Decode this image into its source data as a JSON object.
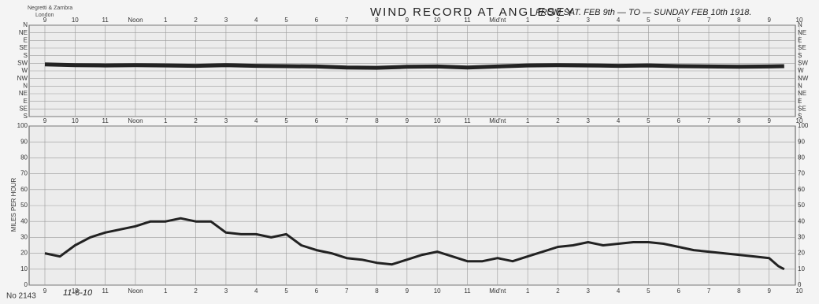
{
  "chart_data": {
    "type": "line",
    "maker": "Negretti & Zambra",
    "maker_city": "London",
    "title": "WIND RECORD AT ANGLESEY",
    "subtitle": "FROM SAT. FEB 9th — TO — SUNDAY FEB 10th 1918.",
    "y_label": "MILES PER HOUR",
    "record_number": "No 2143",
    "note": "11-6-10",
    "xlim": [
      0,
      25
    ],
    "xticks": [
      {
        "value": 0,
        "label": "9"
      },
      {
        "value": 1,
        "label": "10"
      },
      {
        "value": 2,
        "label": "11"
      },
      {
        "value": 3,
        "label": "Noon"
      },
      {
        "value": 4,
        "label": "1"
      },
      {
        "value": 5,
        "label": "2"
      },
      {
        "value": 6,
        "label": "3"
      },
      {
        "value": 7,
        "label": "4"
      },
      {
        "value": 8,
        "label": "5"
      },
      {
        "value": 9,
        "label": "6"
      },
      {
        "value": 10,
        "label": "7"
      },
      {
        "value": 11,
        "label": "8"
      },
      {
        "value": 12,
        "label": "9"
      },
      {
        "value": 13,
        "label": "10"
      },
      {
        "value": 14,
        "label": "11"
      },
      {
        "value": 15,
        "label": "Mid'nt"
      },
      {
        "value": 16,
        "label": "1"
      },
      {
        "value": 17,
        "label": "2"
      },
      {
        "value": 18,
        "label": "3"
      },
      {
        "value": 19,
        "label": "4"
      },
      {
        "value": 20,
        "label": "5"
      },
      {
        "value": 21,
        "label": "6"
      },
      {
        "value": 22,
        "label": "7"
      },
      {
        "value": 23,
        "label": "8"
      },
      {
        "value": 24,
        "label": "9"
      },
      {
        "value": 25,
        "label": "10"
      }
    ],
    "ylim": [
      0,
      100
    ],
    "yticks": [
      0,
      10,
      20,
      30,
      40,
      50,
      60,
      70,
      80,
      90,
      100
    ],
    "grid": true,
    "direction_lim": [
      0,
      540
    ],
    "direction_ticks": [
      {
        "value": 0,
        "label": "N"
      },
      {
        "value": 45,
        "label": "NE"
      },
      {
        "value": 90,
        "label": "E"
      },
      {
        "value": 135,
        "label": "SE"
      },
      {
        "value": 180,
        "label": "S"
      },
      {
        "value": 225,
        "label": "SW"
      },
      {
        "value": 270,
        "label": "W"
      },
      {
        "value": 315,
        "label": "NW"
      },
      {
        "value": 360,
        "label": "N"
      },
      {
        "value": 405,
        "label": "NE"
      },
      {
        "value": 450,
        "label": "E"
      },
      {
        "value": 495,
        "label": "SE"
      },
      {
        "value": 540,
        "label": "S"
      }
    ],
    "direction": {
      "color": "#222",
      "x": [
        0,
        1,
        2,
        3,
        4,
        5,
        6,
        7,
        8,
        9,
        10,
        11,
        12,
        13,
        14,
        15,
        16,
        17,
        18,
        19,
        20,
        21,
        22,
        23,
        24,
        24.5
      ],
      "values": [
        232,
        236,
        238,
        236,
        238,
        240,
        236,
        240,
        242,
        244,
        250,
        252,
        246,
        244,
        250,
        244,
        238,
        236,
        238,
        240,
        238,
        242,
        244,
        246,
        244,
        242
      ]
    },
    "series": [
      {
        "name": "MILES PER HOUR",
        "color": "#222",
        "x": [
          0,
          0.5,
          1,
          1.5,
          2,
          2.5,
          3,
          3.5,
          4,
          4.5,
          5,
          5.5,
          6,
          6.5,
          7,
          7.5,
          8,
          8.5,
          9,
          9.5,
          10,
          10.5,
          11,
          11.5,
          12,
          12.5,
          13,
          13.5,
          14,
          14.5,
          15,
          15.5,
          16,
          16.5,
          17,
          17.5,
          18,
          18.5,
          19,
          19.5,
          20,
          20.5,
          21,
          21.5,
          22,
          22.5,
          23,
          23.5,
          24,
          24.3,
          24.5
        ],
        "values": [
          20,
          18,
          25,
          30,
          33,
          35,
          37,
          40,
          40,
          42,
          40,
          40,
          33,
          32,
          32,
          30,
          32,
          25,
          22,
          20,
          17,
          16,
          14,
          13,
          16,
          19,
          21,
          18,
          15,
          15,
          17,
          15,
          18,
          21,
          24,
          25,
          27,
          25,
          26,
          27,
          27,
          26,
          24,
          22,
          21,
          20,
          19,
          18,
          17,
          12,
          10
        ]
      }
    ]
  }
}
